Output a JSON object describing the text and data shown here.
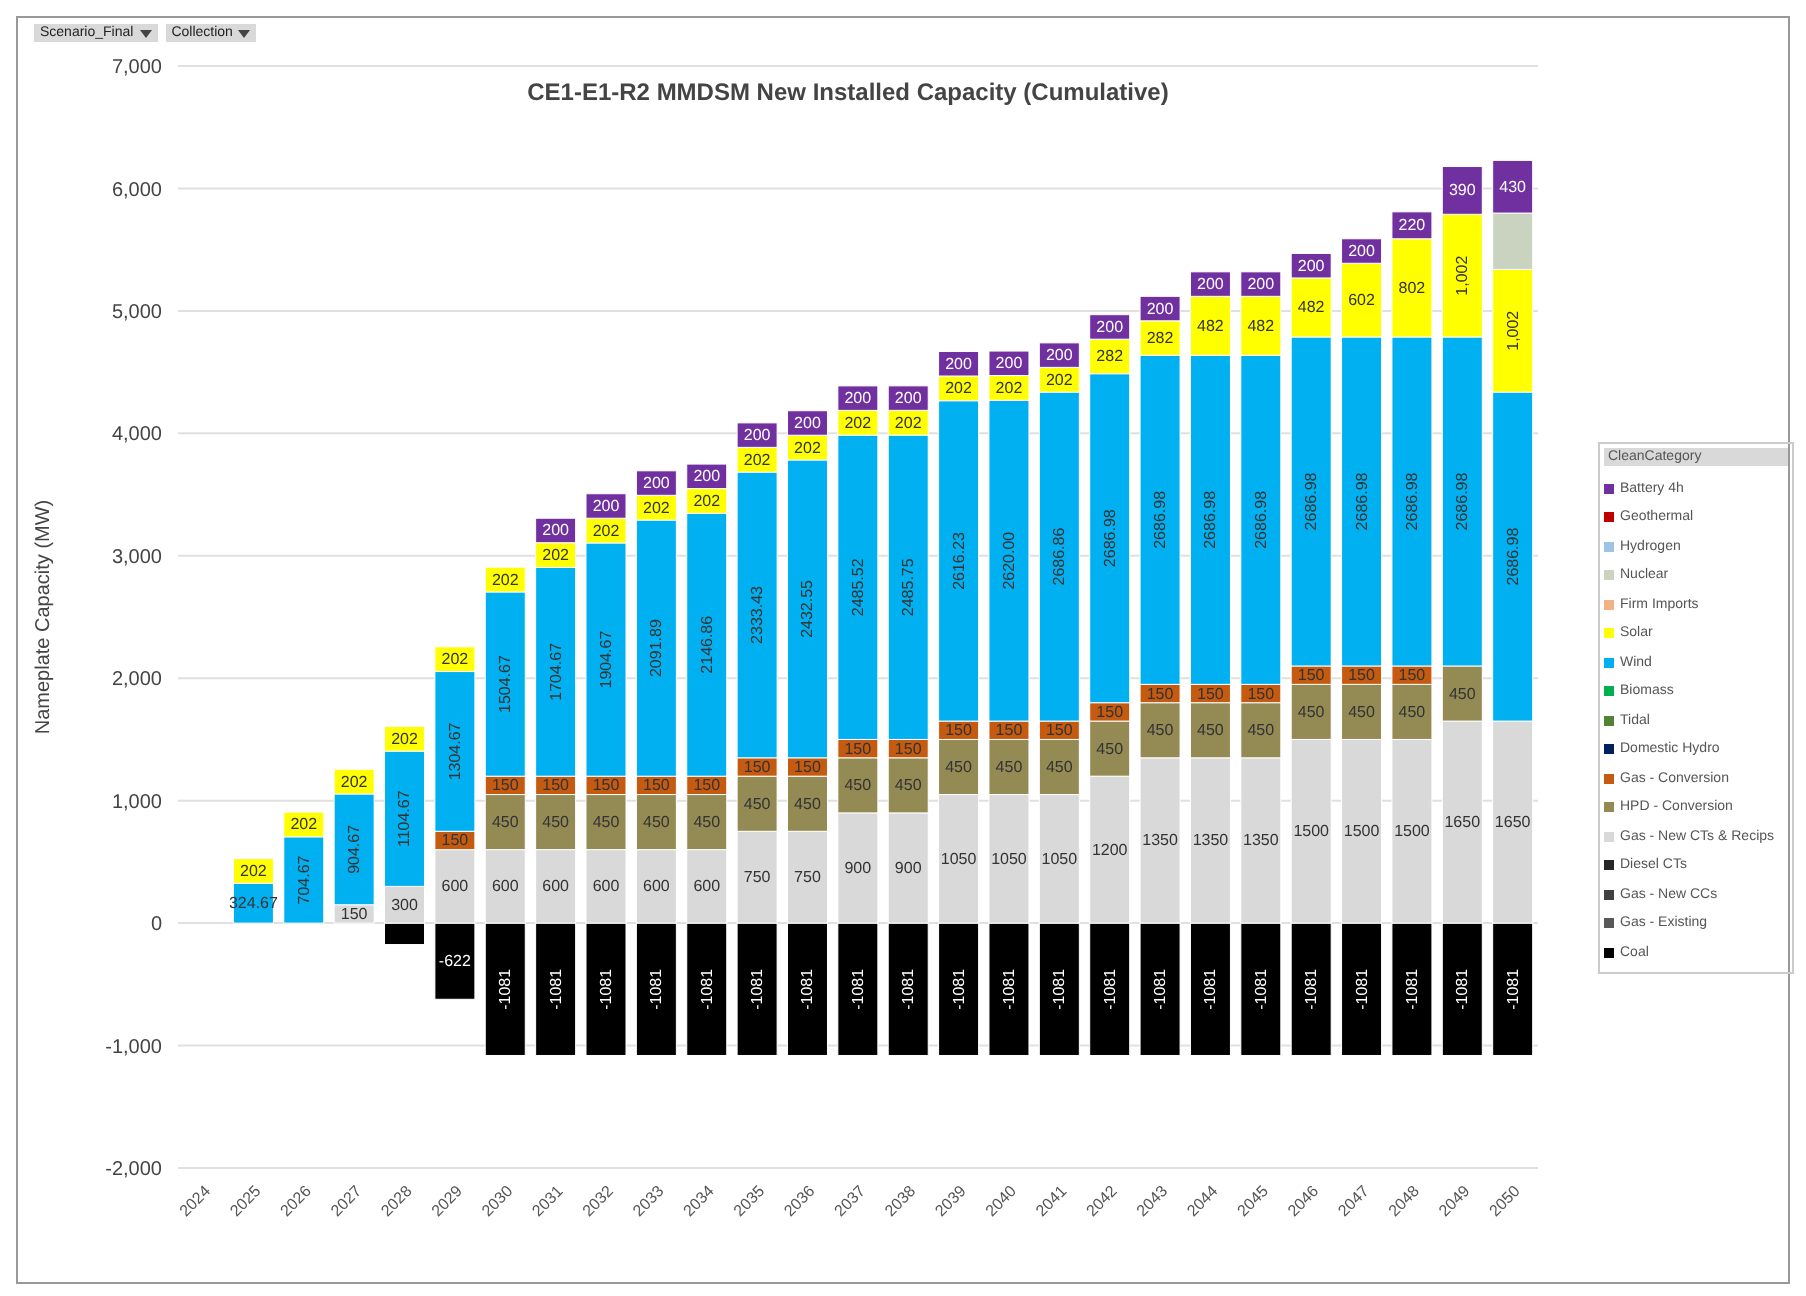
{
  "chart_data": {
    "type": "bar",
    "title": "CE1-E1-R2 MMDSM New Installed Capacity (Cumulative)",
    "ylabel": "Nameplate Capacity (MW)",
    "legend_title": "CleanCategory",
    "annotations": [
      "Scenario_Final",
      "Collection"
    ],
    "categories": [
      "2024",
      "2025",
      "2026",
      "2027",
      "2028",
      "2029",
      "2030",
      "2031",
      "2032",
      "2033",
      "2034",
      "2035",
      "2036",
      "2037",
      "2038",
      "2039",
      "2040",
      "2041",
      "2042",
      "2043",
      "2044",
      "2045",
      "2046",
      "2047",
      "2048",
      "2049",
      "2050"
    ],
    "stacked": true,
    "grid": "y",
    "legend": "right",
    "ylim": [
      -2000,
      7000
    ],
    "yticks": [
      {
        "value": -2000,
        "label": "-2,000"
      },
      {
        "value": -1000,
        "label": "-1,000"
      },
      0,
      {
        "value": 1000,
        "label": "1,000"
      },
      {
        "value": 2000,
        "label": "2,000"
      },
      {
        "value": 3000,
        "label": "3,000"
      },
      {
        "value": 4000,
        "label": "4,000"
      },
      {
        "value": 5000,
        "label": "5,000"
      },
      {
        "value": 6000,
        "label": "6,000"
      },
      {
        "value": 7000,
        "label": "7,000"
      }
    ],
    "series": [
      {
        "name": "Coal",
        "color": "#000000",
        "values": [
          null,
          null,
          null,
          null,
          -175,
          -622,
          -1081,
          -1081,
          -1081,
          -1081,
          -1081,
          -1081,
          -1081,
          -1081,
          -1081,
          -1081,
          -1081,
          -1081,
          -1081,
          -1081,
          -1081,
          -1081,
          -1081,
          -1081,
          -1081,
          -1081,
          -1081
        ],
        "value_labels": [
          null,
          null,
          null,
          null,
          null,
          "-622",
          "-1081",
          "-1081",
          "-1081",
          "-1081",
          "-1081",
          "-1081",
          "-1081",
          "-1081",
          "-1081",
          "-1081",
          "-1081",
          "-1081",
          "-1081",
          "-1081",
          "-1081",
          "-1081",
          "-1081",
          "-1081",
          "-1081",
          "-1081",
          "-1081"
        ]
      },
      {
        "name": "Gas - Existing",
        "color": "#595959",
        "values": [
          null,
          null,
          null,
          null,
          null,
          null,
          null,
          null,
          null,
          null,
          null,
          null,
          null,
          null,
          null,
          null,
          null,
          null,
          null,
          null,
          null,
          null,
          null,
          null,
          null,
          null,
          null
        ]
      },
      {
        "name": "Gas - New CCs",
        "color": "#404040",
        "values": [
          null,
          null,
          null,
          null,
          null,
          null,
          null,
          null,
          null,
          null,
          null,
          null,
          null,
          null,
          null,
          null,
          null,
          null,
          null,
          null,
          null,
          null,
          null,
          null,
          null,
          null,
          null
        ]
      },
      {
        "name": "Diesel CTs",
        "color": "#262626",
        "values": [
          null,
          null,
          null,
          null,
          null,
          null,
          null,
          null,
          null,
          null,
          null,
          null,
          null,
          null,
          null,
          null,
          null,
          null,
          null,
          null,
          null,
          null,
          null,
          null,
          null,
          null,
          null
        ]
      },
      {
        "name": "Gas - New CTs & Recips",
        "color": "#d9d9d9",
        "values": [
          null,
          null,
          null,
          150,
          300,
          600,
          600,
          600,
          600,
          600,
          600,
          750,
          750,
          900,
          900,
          1050,
          1050,
          1050,
          1200,
          1350,
          1350,
          1350,
          1500,
          1500,
          1500,
          1650,
          1650
        ],
        "value_labels": [
          null,
          null,
          null,
          "150",
          "300",
          "600",
          "600",
          "600",
          "600",
          "600",
          "600",
          "750",
          "750",
          "900",
          "900",
          "1050",
          "1050",
          "1050",
          "1200",
          "1350",
          "1350",
          "1350",
          "1500",
          "1500",
          "1500",
          "1650",
          "1650"
        ]
      },
      {
        "name": "HPD - Conversion",
        "color": "#948a54",
        "values": [
          null,
          null,
          null,
          null,
          null,
          null,
          450,
          450,
          450,
          450,
          450,
          450,
          450,
          450,
          450,
          450,
          450,
          450,
          450,
          450,
          450,
          450,
          450,
          450,
          450,
          450,
          null
        ],
        "value_labels": [
          null,
          null,
          null,
          null,
          null,
          null,
          "450",
          "450",
          "450",
          "450",
          "450",
          "450",
          "450",
          "450",
          "450",
          "450",
          "450",
          "450",
          "450",
          "450",
          "450",
          "450",
          "450",
          "450",
          "450",
          "450",
          null
        ]
      },
      {
        "name": "Gas - Conversion",
        "color": "#c55a11",
        "values": [
          null,
          null,
          null,
          null,
          null,
          150,
          150,
          150,
          150,
          150,
          150,
          150,
          150,
          150,
          150,
          150,
          150,
          150,
          150,
          150,
          150,
          150,
          150,
          150,
          150,
          null,
          null
        ],
        "value_labels": [
          null,
          null,
          null,
          null,
          null,
          "150",
          "150",
          "150",
          "150",
          "150",
          "150",
          "150",
          "150",
          "150",
          "150",
          "150",
          "150",
          "150",
          "150",
          "150",
          "150",
          "150",
          "150",
          "150",
          "150",
          null,
          null
        ]
      },
      {
        "name": "Domestic Hydro",
        "color": "#002060",
        "values": [
          null,
          null,
          null,
          null,
          null,
          null,
          null,
          null,
          null,
          null,
          null,
          null,
          null,
          null,
          null,
          null,
          null,
          null,
          null,
          null,
          null,
          null,
          null,
          null,
          null,
          null,
          null
        ]
      },
      {
        "name": "Tidal",
        "color": "#548235",
        "values": [
          null,
          null,
          null,
          null,
          null,
          null,
          null,
          null,
          null,
          null,
          null,
          null,
          null,
          null,
          null,
          null,
          null,
          null,
          null,
          null,
          null,
          null,
          null,
          null,
          null,
          null,
          null
        ]
      },
      {
        "name": "Biomass",
        "color": "#00b050",
        "values": [
          null,
          null,
          null,
          null,
          null,
          null,
          null,
          null,
          null,
          null,
          null,
          null,
          null,
          null,
          null,
          null,
          null,
          null,
          null,
          null,
          null,
          null,
          null,
          null,
          null,
          null,
          null
        ]
      },
      {
        "name": "Wind",
        "color": "#00b0f0",
        "values": [
          null,
          324.67,
          704.67,
          904.67,
          1104.67,
          1304.67,
          1504.67,
          1704.67,
          1904.67,
          2091.89,
          2146.86,
          2333.43,
          2432.55,
          2485.52,
          2485.75,
          2616.23,
          2620,
          2686.86,
          2686.98,
          2686.98,
          2686.98,
          2686.98,
          2686.98,
          2686.98,
          2686.98,
          2686.98,
          2686.98
        ],
        "value_labels": [
          null,
          "324.67",
          "704.67",
          "904.67",
          "1104.67",
          "1304.67",
          "1504.67",
          "1704.67",
          "1904.67",
          "2091.89",
          "2146.86",
          "2333.43",
          "2432.55",
          "2485.52",
          "2485.75",
          "2616.23",
          "2620.00",
          "2686.86",
          "2686.98",
          "2686.98",
          "2686.98",
          "2686.98",
          "2686.98",
          "2686.98",
          "2686.98",
          "2686.98",
          "2686.98"
        ]
      },
      {
        "name": "Solar",
        "color": "#ffff00",
        "values": [
          null,
          202,
          202,
          202,
          202,
          202,
          202,
          202,
          202,
          202,
          202,
          202,
          202,
          202,
          202,
          202,
          202,
          202,
          282,
          282,
          482,
          482,
          482,
          602,
          802,
          1002,
          1002
        ],
        "value_labels": [
          null,
          "202",
          "202",
          "202",
          "202",
          "202",
          "202",
          "202",
          "202",
          "202",
          "202",
          "202",
          "202",
          "202",
          "202",
          "202",
          "202",
          "202",
          "282",
          "282",
          "482",
          "482",
          "482",
          "602",
          "802",
          "1,002",
          "1,002"
        ]
      },
      {
        "name": "Firm Imports",
        "color": "#f4b183",
        "values": [
          null,
          null,
          null,
          null,
          null,
          null,
          null,
          null,
          null,
          null,
          null,
          null,
          null,
          null,
          null,
          null,
          null,
          null,
          null,
          null,
          null,
          null,
          null,
          null,
          null,
          null,
          null
        ]
      },
      {
        "name": "Nuclear",
        "color": "#c9d3c0",
        "values": [
          null,
          null,
          null,
          null,
          null,
          null,
          null,
          null,
          null,
          null,
          null,
          null,
          null,
          null,
          null,
          null,
          null,
          null,
          null,
          null,
          null,
          null,
          null,
          null,
          null,
          null,
          460
        ]
      },
      {
        "name": "Hydrogen",
        "color": "#9dc3e6",
        "values": [
          null,
          null,
          null,
          null,
          null,
          null,
          null,
          null,
          null,
          null,
          null,
          null,
          null,
          null,
          null,
          null,
          null,
          null,
          null,
          null,
          null,
          null,
          null,
          null,
          null,
          null,
          null
        ]
      },
      {
        "name": "Geothermal",
        "color": "#c00000",
        "values": [
          null,
          null,
          null,
          null,
          null,
          null,
          null,
          null,
          null,
          null,
          null,
          null,
          null,
          null,
          null,
          null,
          null,
          null,
          null,
          null,
          null,
          null,
          null,
          null,
          null,
          null,
          null
        ]
      },
      {
        "name": "Battery 4h",
        "color": "#7030a0",
        "values": [
          null,
          null,
          null,
          null,
          null,
          null,
          null,
          200,
          200,
          200,
          200,
          200,
          200,
          200,
          200,
          200,
          200,
          200,
          200,
          200,
          200,
          200,
          200,
          200,
          220,
          390,
          430
        ],
        "value_labels": [
          null,
          null,
          null,
          null,
          null,
          null,
          null,
          "200",
          "200",
          "200",
          "200",
          "200",
          "200",
          "200",
          "200",
          "200",
          "200",
          "200",
          "200",
          "200",
          "200",
          "200",
          "200",
          "200",
          "220",
          "390",
          "430"
        ]
      }
    ]
  }
}
